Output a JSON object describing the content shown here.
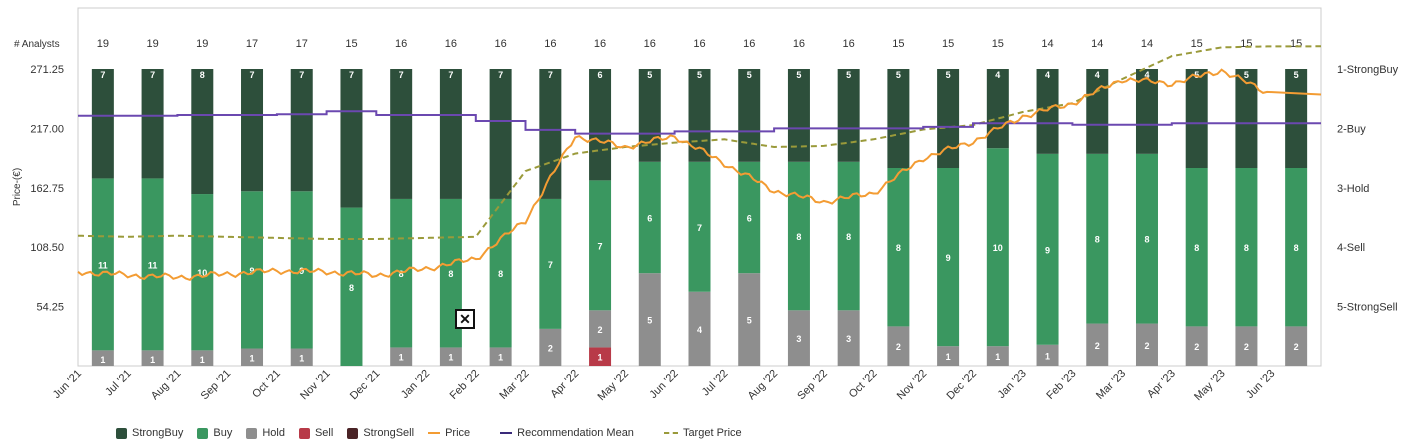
{
  "chart_data": {
    "type": "bar",
    "analysts_label": "# Analysts",
    "y_axis_label": "Price-(€)",
    "y_ticks": [
      "271.25",
      "217.00",
      "162.75",
      "108.50",
      "54.25"
    ],
    "y_min": 0,
    "y_max": 271.25,
    "right_ticks": [
      "1-StrongBuy",
      "2-Buy",
      "3-Hold",
      "4-Sell",
      "5-StrongSell"
    ],
    "categories": [
      "Jun '21",
      "Jul '21",
      "Aug '21",
      "Sep '21",
      "Oct '21",
      "Nov '21",
      "Dec '21",
      "Jan '22",
      "Feb '22",
      "Mar '22",
      "Apr '22",
      "May '22",
      "Jun '22",
      "Jul '22",
      "Aug '22",
      "Sep '22",
      "Oct '22",
      "Nov '22",
      "Dec '22",
      "Jan '23",
      "Feb '23",
      "Mar '23",
      "Apr '23",
      "May '23",
      "Jun '23"
    ],
    "analysts": [
      19,
      19,
      19,
      17,
      17,
      15,
      16,
      16,
      16,
      16,
      16,
      16,
      16,
      16,
      16,
      16,
      15,
      15,
      15,
      14,
      14,
      14,
      15,
      15,
      15
    ],
    "series": [
      {
        "name": "StrongBuy",
        "color": "#2d4f3b",
        "values": [
          7,
          7,
          8,
          7,
          7,
          7,
          7,
          7,
          7,
          7,
          6,
          5,
          5,
          5,
          5,
          5,
          5,
          5,
          4,
          4,
          4,
          4,
          5,
          5,
          5
        ]
      },
      {
        "name": "Buy",
        "color": "#3a9760",
        "values": [
          11,
          11,
          10,
          9,
          9,
          8,
          8,
          8,
          8,
          7,
          7,
          6,
          7,
          6,
          8,
          8,
          8,
          9,
          10,
          9,
          8,
          8,
          8,
          8,
          8
        ]
      },
      {
        "name": "Hold",
        "color": "#8e8e8e",
        "values": [
          1,
          1,
          1,
          1,
          1,
          0,
          1,
          1,
          1,
          2,
          2,
          5,
          4,
          5,
          3,
          3,
          2,
          1,
          1,
          1,
          2,
          2,
          2,
          2,
          2
        ]
      },
      {
        "name": "Sell",
        "color": "#b83a48",
        "values": [
          0,
          0,
          0,
          0,
          0,
          0,
          0,
          0,
          0,
          0,
          1,
          0,
          0,
          0,
          0,
          0,
          0,
          0,
          0,
          0,
          0,
          0,
          0,
          0,
          0
        ]
      },
      {
        "name": "StrongSell",
        "color": "#4a2326",
        "values": [
          0,
          0,
          0,
          0,
          0,
          0,
          0,
          0,
          0,
          0,
          0,
          0,
          0,
          0,
          0,
          0,
          0,
          0,
          0,
          0,
          0,
          0,
          0,
          0,
          0
        ]
      }
    ],
    "price": {
      "name": "Price",
      "color": "#f39c33",
      "values": [
        86,
        83,
        81,
        84,
        87,
        86,
        83,
        89,
        98,
        133,
        210,
        200,
        210,
        185,
        160,
        150,
        158,
        190,
        205,
        228,
        240,
        262,
        258,
        270,
        248
      ]
    },
    "recommendation_mean": {
      "name": "Recommendation Mean",
      "color": "#6b48b0",
      "scale_min": 1,
      "scale_max": 5,
      "values": [
        1.63,
        1.63,
        1.62,
        1.62,
        1.61,
        1.57,
        1.62,
        1.62,
        1.7,
        1.82,
        1.87,
        1.87,
        1.84,
        1.84,
        1.8,
        1.8,
        1.8,
        1.78,
        1.73,
        1.73,
        1.75,
        1.75,
        1.73,
        1.73,
        1.73
      ]
    },
    "target_price": {
      "name": "Target Price",
      "color": "#9a9a3a",
      "values": [
        119,
        118,
        119,
        118,
        117,
        116,
        116,
        117,
        118,
        178,
        194,
        200,
        204,
        207,
        200,
        201,
        207,
        216,
        220,
        232,
        240,
        262,
        283,
        291,
        292
      ]
    },
    "legend_position": "bottom",
    "grid": false
  },
  "legend": {
    "items": [
      "StrongBuy",
      "Buy",
      "Hold",
      "Sell",
      "StrongSell",
      "Price",
      "Recommendation Mean",
      "Target Price"
    ]
  },
  "controls": {
    "zoom_reset_icon": "close-x-icon",
    "zoom_reset_glyph": "✕"
  }
}
